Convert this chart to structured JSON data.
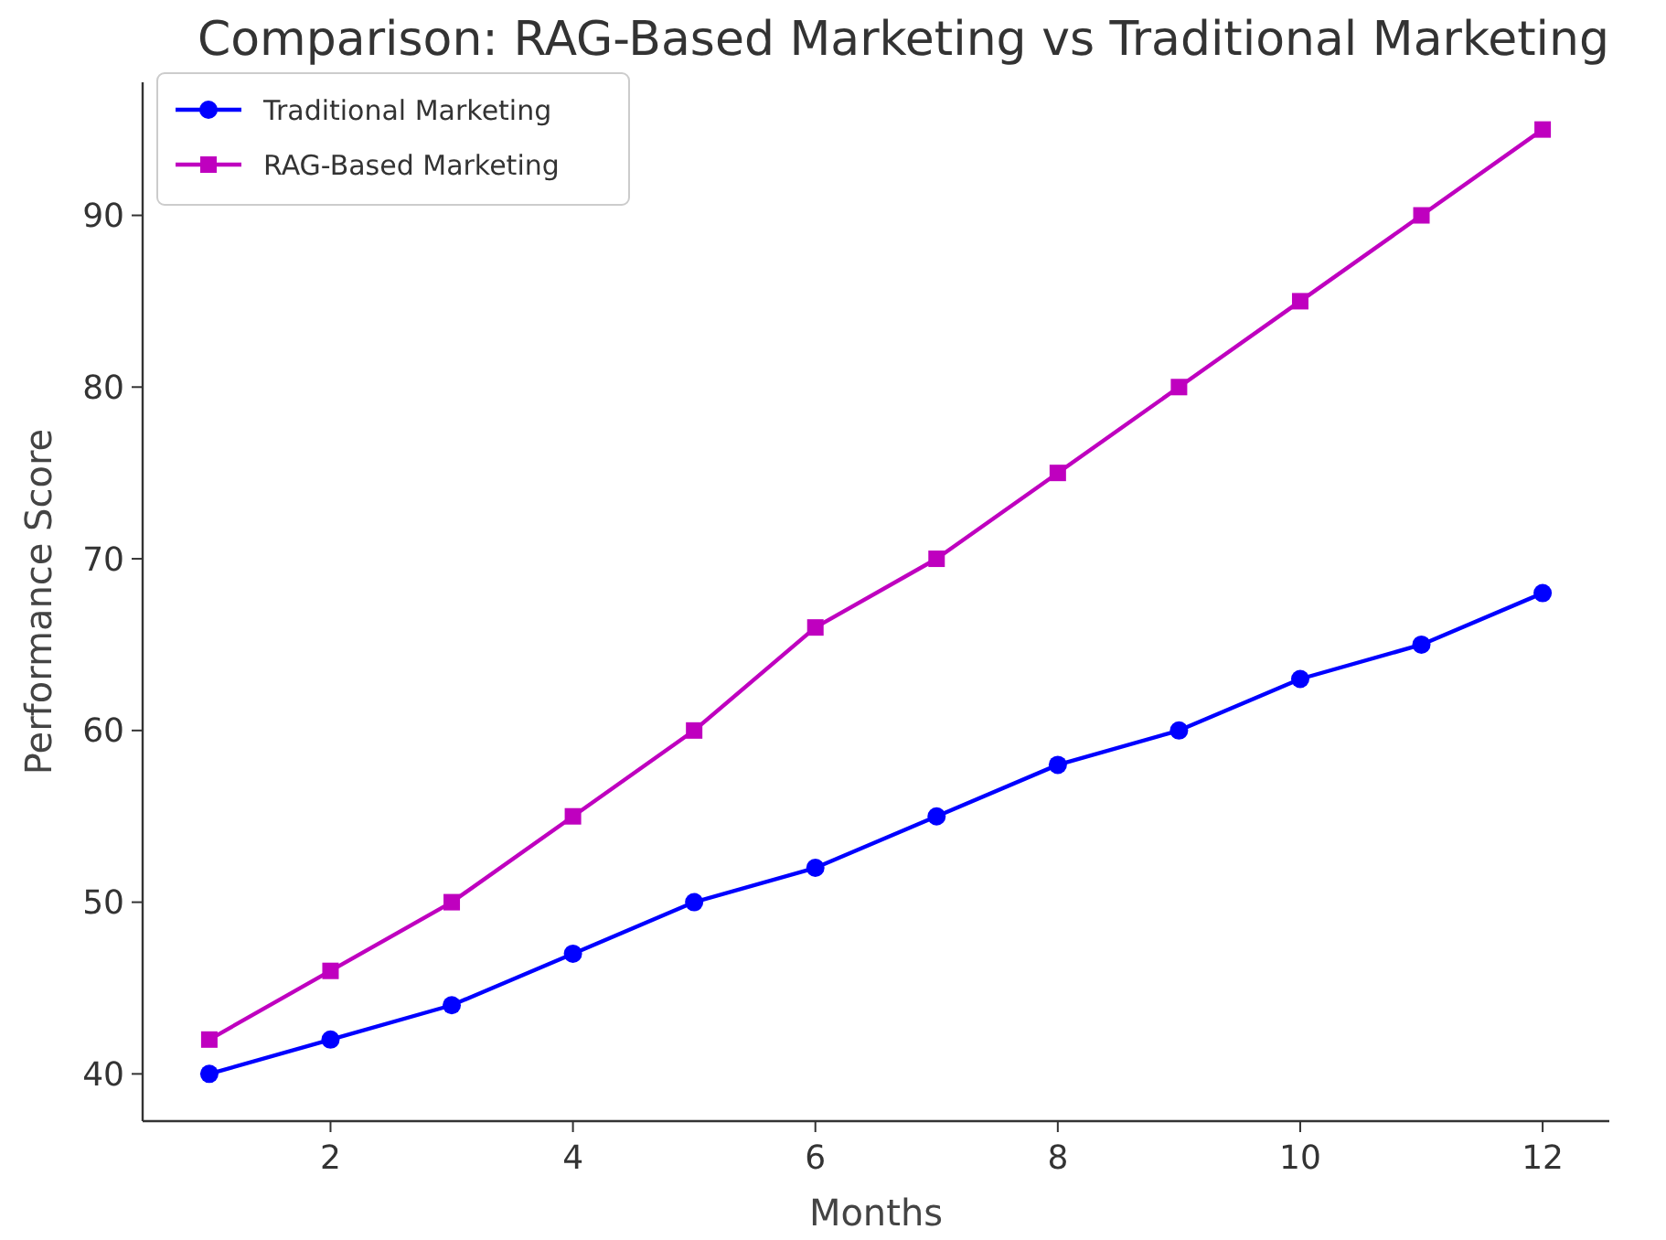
{
  "chart_data": {
    "type": "line",
    "title": "Comparison: RAG-Based Marketing vs Traditional Marketing",
    "xlabel": "Months",
    "ylabel": "Performance Score",
    "x": [
      1,
      2,
      3,
      4,
      5,
      6,
      7,
      8,
      9,
      10,
      11,
      12
    ],
    "series": [
      {
        "name": "Traditional Marketing",
        "color": "#0000ff",
        "marker": "circle",
        "values": [
          40,
          42,
          44,
          47,
          50,
          52,
          55,
          58,
          60,
          63,
          65,
          68
        ]
      },
      {
        "name": "RAG-Based Marketing",
        "color": "#bf00bf",
        "marker": "square",
        "values": [
          42,
          46,
          50,
          55,
          60,
          66,
          70,
          75,
          80,
          85,
          90,
          95
        ]
      }
    ],
    "xlim": [
      0.45,
      12.55
    ],
    "xticks": [
      2,
      4,
      6,
      8,
      10,
      12
    ],
    "ylim": [
      37.25,
      97.75
    ],
    "yticks": [
      40,
      50,
      60,
      70,
      80,
      90
    ],
    "grid": false,
    "legend": "top left",
    "line_style": "solid"
  }
}
